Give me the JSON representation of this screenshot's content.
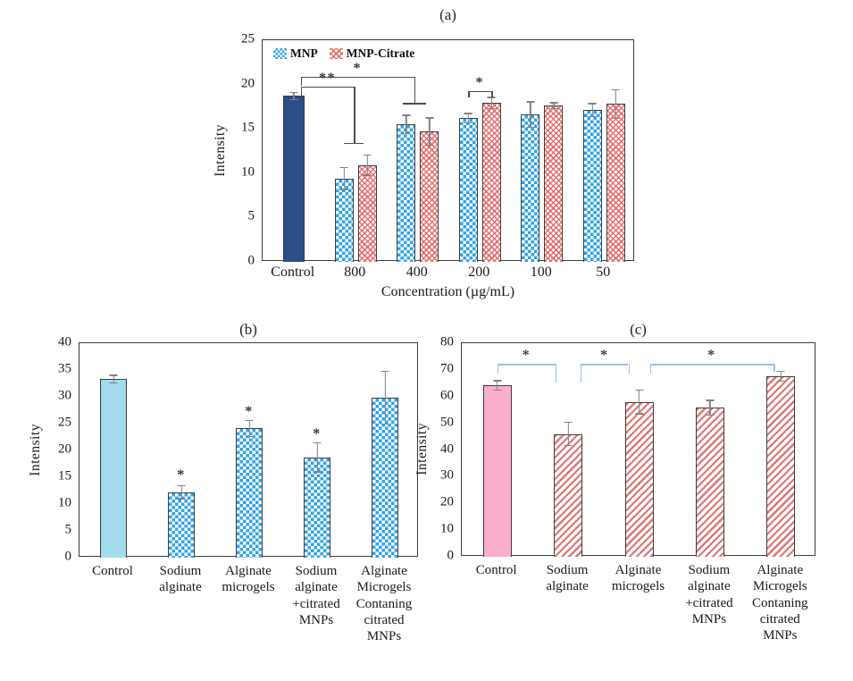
{
  "colors": {
    "control_navy": "#2A4E85",
    "control_light_blue": "#A4DBEC",
    "control_pink": "#F9AECB",
    "mnp_checker_blue": "#2FA3E8",
    "mnp_citrate_red": "#E65A5A",
    "hatch_red": "#D86262",
    "bracket_gray": "#4d4d4d",
    "bracket_light_blue": "#9DC3E6",
    "error_bar_gray": "#828282"
  },
  "chart_data": [
    {
      "id": "a",
      "type": "bar",
      "title": "(a)",
      "ylabel": "Intensity",
      "xlabel": "Concentration (µg/mL)",
      "ylim": [
        0,
        25
      ],
      "ytick_step": 5,
      "grid": false,
      "legend_position": "top-left-inside",
      "legend": [
        {
          "name": "MNP",
          "pattern": "checker-blue"
        },
        {
          "name": "MNP-Citrate",
          "pattern": "wave-red"
        }
      ],
      "categories": [
        "Control",
        "800",
        "400",
        "200",
        "100",
        "50"
      ],
      "groups": [
        {
          "label": "Control",
          "bars": [
            {
              "series": "Control",
              "value": 18.7,
              "err": 0.5,
              "pattern": "solid-navy"
            }
          ]
        },
        {
          "label": "800",
          "bars": [
            {
              "series": "MNP",
              "value": 9.4,
              "err": 1.3,
              "pattern": "checker-blue"
            },
            {
              "series": "MNP-Citrate",
              "value": 10.9,
              "err": 1.2,
              "pattern": "wave-red"
            }
          ]
        },
        {
          "label": "400",
          "bars": [
            {
              "series": "MNP",
              "value": 15.5,
              "err": 1.1,
              "pattern": "checker-blue"
            },
            {
              "series": "MNP-Citrate",
              "value": 14.7,
              "err": 1.6,
              "pattern": "wave-red"
            }
          ]
        },
        {
          "label": "200",
          "bars": [
            {
              "series": "MNP",
              "value": 16.2,
              "err": 0.6,
              "pattern": "checker-blue"
            },
            {
              "series": "MNP-Citrate",
              "value": 17.9,
              "err": 0.7,
              "pattern": "wave-red"
            }
          ]
        },
        {
          "label": "100",
          "bars": [
            {
              "series": "MNP",
              "value": 16.6,
              "err": 1.5,
              "pattern": "checker-blue"
            },
            {
              "series": "MNP-Citrate",
              "value": 17.6,
              "err": 0.4,
              "pattern": "wave-red"
            }
          ]
        },
        {
          "label": "50",
          "bars": [
            {
              "series": "MNP",
              "value": 17.1,
              "err": 0.8,
              "pattern": "checker-blue"
            },
            {
              "series": "MNP-Citrate",
              "value": 17.8,
              "err": 1.7,
              "pattern": "wave-red"
            }
          ]
        }
      ],
      "annotations": [
        {
          "type": "bracket",
          "label": "**",
          "x1": {
            "g": 0,
            "dx": 8
          },
          "x2": {
            "g": 1,
            "dx": -2
          },
          "y": 19.8,
          "drop1": 1.1,
          "drop2": 6.4,
          "tbar2": 22,
          "color": "#4d4d4d"
        },
        {
          "type": "bracket",
          "label": "*",
          "x1": {
            "g": 0,
            "dx": 8
          },
          "x2": {
            "g": 2,
            "dx": -4
          },
          "y": 20.9,
          "drop1": 1.0,
          "drop2": 3.0,
          "tbar2": 26,
          "color": "#4d4d4d"
        },
        {
          "type": "bracket",
          "label": "*",
          "x1": {
            "g": 3,
            "dx": -13
          },
          "x2": {
            "g": 3,
            "dx": 13
          },
          "y": 19.3,
          "drop1": 0.8,
          "drop2": 0.8,
          "color": "#4d4d4d"
        }
      ]
    },
    {
      "id": "b",
      "type": "bar",
      "title": "(b)",
      "ylabel": "Intensity",
      "xlabel": "",
      "ylim": [
        0,
        40
      ],
      "ytick_step": 5,
      "grid": false,
      "categories": [
        "Control",
        "Sodium\nalginate",
        "Alginate\nmicrogels",
        "Sodium\nalginate\n+citrated\nMNPs",
        "Alginate\nMicrogels\nContaning\ncitrated\nMNPs"
      ],
      "groups": [
        {
          "label": "Control",
          "bars": [
            {
              "series": "Control",
              "value": 33.3,
              "err": 0.8,
              "pattern": "solid-lightblue"
            }
          ]
        },
        {
          "label": "Sodium\nalginate",
          "bars": [
            {
              "series": "Sodium alginate",
              "value": 12.2,
              "err": 1.3,
              "pattern": "checker-blue"
            }
          ]
        },
        {
          "label": "Alginate\nmicrogels",
          "bars": [
            {
              "series": "Alginate microgels",
              "value": 24.1,
              "err": 1.6,
              "pattern": "checker-blue"
            }
          ]
        },
        {
          "label": "Sodium\nalginate\n+citrated\nMNPs",
          "bars": [
            {
              "series": "Sodium alginate +citrated MNPs",
              "value": 18.7,
              "err": 2.8,
              "pattern": "checker-blue"
            }
          ]
        },
        {
          "label": "Alginate\nMicrogels\nContaning\ncitrated\nMNPs",
          "bars": [
            {
              "series": "Alginate Microgels Contaning citrated MNPs",
              "value": 29.8,
              "err": 5.0,
              "pattern": "checker-blue"
            }
          ]
        }
      ],
      "annotations": [
        {
          "type": "star",
          "label": "*",
          "g": 1,
          "y": 15.4
        },
        {
          "type": "star",
          "label": "*",
          "g": 2,
          "y": 27.2
        },
        {
          "type": "star",
          "label": "*",
          "g": 3,
          "y": 23.0
        }
      ]
    },
    {
      "id": "c",
      "type": "bar",
      "title": "(c)",
      "ylabel": "Intensity",
      "xlabel": "",
      "ylim": [
        0,
        80
      ],
      "ytick_step": 10,
      "grid": false,
      "categories": [
        "Control",
        "Sodium\nalginate",
        "Alginate\nmicrogels",
        "Sodium\nalginate\n+citrated\nMNPs",
        "Alginate\nMicrogels\nContaning\ncitrated\nMNPs"
      ],
      "groups": [
        {
          "label": "Control",
          "bars": [
            {
              "series": "Control",
              "value": 64.2,
              "err": 2.0,
              "pattern": "solid-pink"
            }
          ]
        },
        {
          "label": "Sodium\nalginate",
          "bars": [
            {
              "series": "Sodium alginate",
              "value": 46.0,
              "err": 4.6,
              "pattern": "hatch-red"
            }
          ]
        },
        {
          "label": "Alginate\nmicrogels",
          "bars": [
            {
              "series": "Alginate microgels",
              "value": 58.0,
              "err": 4.7,
              "pattern": "hatch-red"
            }
          ]
        },
        {
          "label": "Sodium\nalginate\n+citrated\nMNPs",
          "bars": [
            {
              "series": "Sodium alginate +citrated MNPs",
              "value": 55.8,
              "err": 3.0,
              "pattern": "hatch-red"
            }
          ]
        },
        {
          "label": "Alginate\nMicrogels\nContaning\ncitrated\nMNPs",
          "bars": [
            {
              "series": "Alginate Microgels Contaning citrated MNPs",
              "value": 67.6,
              "err": 2.0,
              "pattern": "hatch-red"
            }
          ]
        }
      ],
      "annotations": [
        {
          "type": "bracket",
          "label": "*",
          "x1": {
            "g": 0,
            "dx": 0
          },
          "x2": {
            "g": 1,
            "dx": -14
          },
          "y": 72.2,
          "drop1": 3.5,
          "drop2": 7.0,
          "color": "#9DC3E6",
          "label_color": "#3d3d3d"
        },
        {
          "type": "bracket",
          "label": "*",
          "x1": {
            "g": 1,
            "dx": 14
          },
          "x2": {
            "g": 2,
            "dx": -12
          },
          "y": 72.2,
          "drop1": 7.0,
          "drop2": 3.5,
          "color": "#9DC3E6",
          "label_color": "#3d3d3d"
        },
        {
          "type": "bracket",
          "label": "*",
          "x1": {
            "g": 2,
            "dx": 12
          },
          "x2": {
            "g": 4,
            "dx": -8
          },
          "y": 72.2,
          "drop1": 3.5,
          "drop2": 3.0,
          "color": "#9DC3E6",
          "label_color": "#3d3d3d"
        }
      ]
    }
  ]
}
